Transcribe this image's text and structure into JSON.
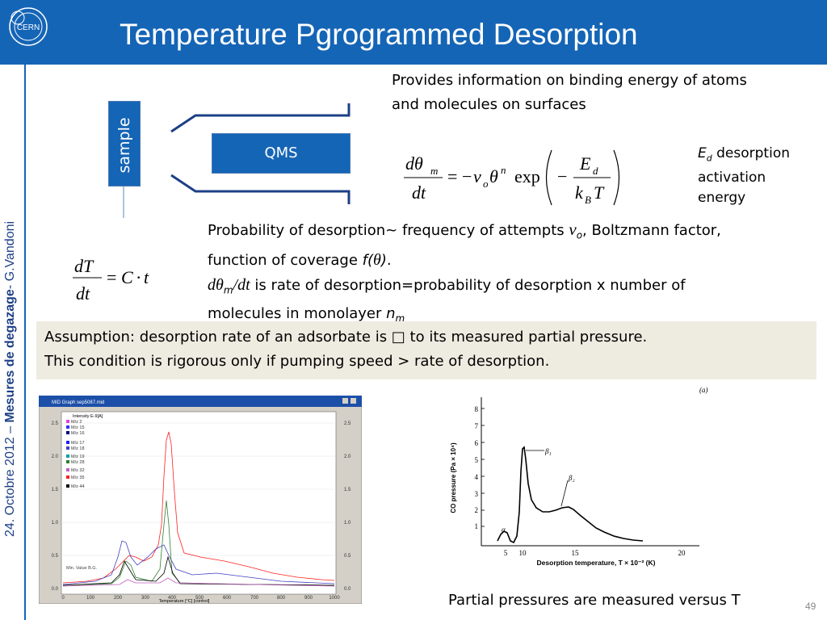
{
  "header": {
    "title": "Temperature Pgrogrammed Desorption",
    "logo_text": "CERN",
    "background": "#1565b6"
  },
  "sidebar": {
    "date": "24. Octobre 2012 – ",
    "course": "Mesures de degazage",
    "sep": "- ",
    "author": "G.Vandoni"
  },
  "diagram": {
    "sample_label": "sample",
    "qms_label": "QMS"
  },
  "intro": {
    "line1": "Provides information on binding energy of atoms",
    "line2": "and molecules on surfaces"
  },
  "ed_note": {
    "symbol": "E",
    "sub": "d",
    "line1": " desorption",
    "line2": "activation",
    "line3": "energy"
  },
  "body": {
    "p1a": "Probability of desorption~ frequency of attempts ",
    "p1_nu": "ν",
    "p1_nu_sub": "o",
    "p1b": ", Boltzmann factor,",
    "p2a": "function of coverage ",
    "p2_f": "f(",
    "p2_theta": "θ",
    "p2_close": ")",
    "p2_end": ".",
    "p3_d": "d",
    "p3_theta": "θ",
    "p3_m": "m",
    "p3_dt": "/dt",
    "p3_rest": " is rate of desorption=probability of desorption x number of",
    "p4a": "molecules in monolayer ",
    "p4_n": "n",
    "p4_m": "m"
  },
  "assumption": {
    "line1": "Assumption: desorption rate of an adsorbate is □ to its measured partial pressure.",
    "line2": "This condition is rigorous only if pumping speed > rate of desorption."
  },
  "caption": "Partial pressures are measured versus T",
  "page_number": "49",
  "mid_graph": {
    "window_title": "MID Graph sep5087.mid",
    "intensity_label": "Intensity E-9[A]",
    "y_ticks": [
      "2.5",
      "2.0",
      "1.5",
      "1.0",
      "0.5",
      "0.0"
    ],
    "x_ticks": [
      "0",
      "100",
      "200",
      "300",
      "400",
      "500",
      "600",
      "700",
      "800",
      "900",
      "1000"
    ],
    "x_label": "Temperature [°C] [control]",
    "min_value": "Min. Value B.G.",
    "legend": [
      "M/z 2",
      "M/z 15",
      "M/z 16",
      "M/z 17",
      "M/z 18",
      "M/z 19",
      "M/z 28",
      "M/z 32",
      "M/z 35",
      "M/z 44"
    ],
    "colors": [
      "#e040e0",
      "#3030ff",
      "#000080",
      "#2020ff",
      "#4040c0",
      "#00a0a0",
      "#308030",
      "#c060c0",
      "#ff2020",
      "#000000"
    ]
  },
  "co_graph": {
    "panel_label": "(a)",
    "y_label": "CO pressure (Pa × 10⁴)",
    "y_ticks": [
      "1",
      "2",
      "3",
      "4",
      "5",
      "6",
      "7",
      "8"
    ],
    "x_ticks": [
      "5",
      "10",
      "15",
      "20"
    ],
    "x_label": "Desorption temperature, T × 10⁻² (K)",
    "peak_alpha": "α",
    "peak_b1": "β₁",
    "peak_b2": "β₂"
  }
}
